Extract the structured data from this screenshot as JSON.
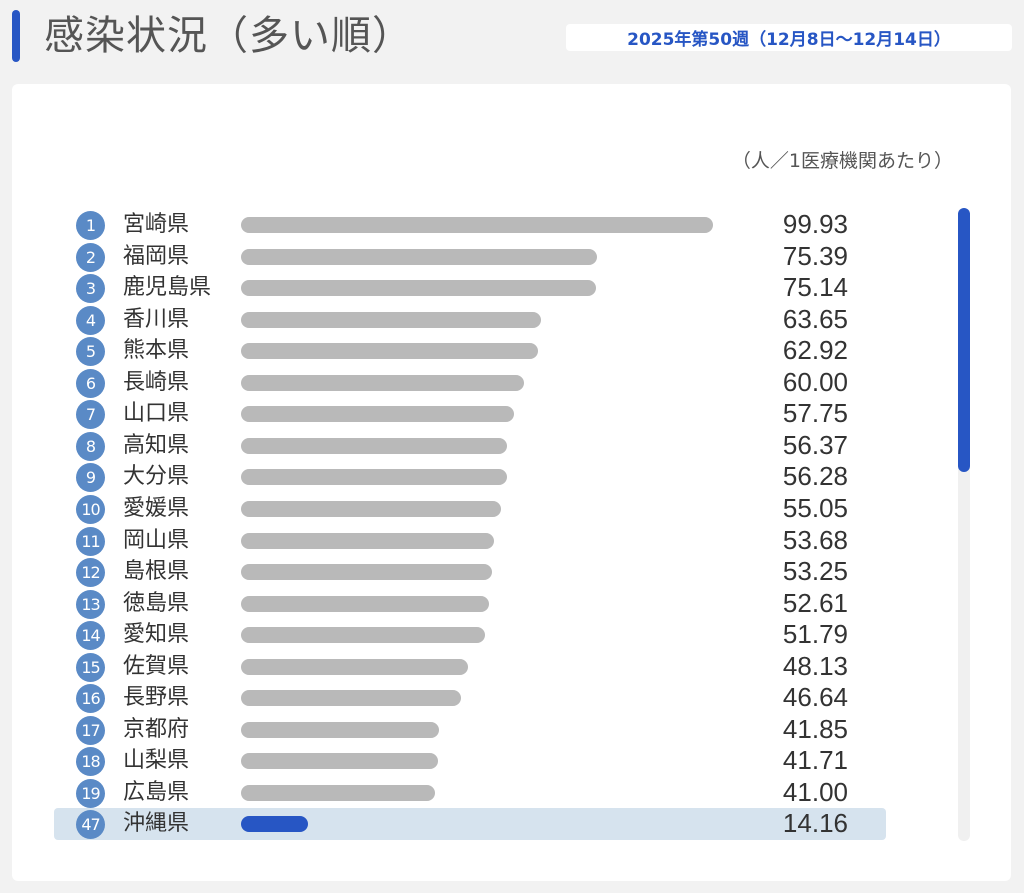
{
  "header": {
    "title": "感染状況（多い順）",
    "week": "2025年第50週（12月8日〜12月14日）"
  },
  "panel": {
    "unit_label": "（人／1医療機関あたり）"
  },
  "colors": {
    "accent": "#2756c4",
    "bar_default": "#b9b9b9",
    "highlight_bg": "#d6e3ee",
    "rank_circle": "#5a8ac6"
  },
  "chart_data": {
    "type": "bar",
    "orientation": "horizontal",
    "xlim": [
      0,
      100
    ],
    "highlight_rank": "47",
    "rows": [
      {
        "rank": "1",
        "prefecture": "宮崎県",
        "value": 99.93,
        "label": "99.93"
      },
      {
        "rank": "2",
        "prefecture": "福岡県",
        "value": 75.39,
        "label": "75.39"
      },
      {
        "rank": "3",
        "prefecture": "鹿児島県",
        "value": 75.14,
        "label": "75.14"
      },
      {
        "rank": "4",
        "prefecture": "香川県",
        "value": 63.65,
        "label": "63.65"
      },
      {
        "rank": "5",
        "prefecture": "熊本県",
        "value": 62.92,
        "label": "62.92"
      },
      {
        "rank": "6",
        "prefecture": "長崎県",
        "value": 60.0,
        "label": "60.00"
      },
      {
        "rank": "7",
        "prefecture": "山口県",
        "value": 57.75,
        "label": "57.75"
      },
      {
        "rank": "8",
        "prefecture": "高知県",
        "value": 56.37,
        "label": "56.37"
      },
      {
        "rank": "9",
        "prefecture": "大分県",
        "value": 56.28,
        "label": "56.28"
      },
      {
        "rank": "10",
        "prefecture": "愛媛県",
        "value": 55.05,
        "label": "55.05"
      },
      {
        "rank": "11",
        "prefecture": "岡山県",
        "value": 53.68,
        "label": "53.68"
      },
      {
        "rank": "12",
        "prefecture": "島根県",
        "value": 53.25,
        "label": "53.25"
      },
      {
        "rank": "13",
        "prefecture": "徳島県",
        "value": 52.61,
        "label": "52.61"
      },
      {
        "rank": "14",
        "prefecture": "愛知県",
        "value": 51.79,
        "label": "51.79"
      },
      {
        "rank": "15",
        "prefecture": "佐賀県",
        "value": 48.13,
        "label": "48.13"
      },
      {
        "rank": "16",
        "prefecture": "長野県",
        "value": 46.64,
        "label": "46.64"
      },
      {
        "rank": "17",
        "prefecture": "京都府",
        "value": 41.85,
        "label": "41.85"
      },
      {
        "rank": "18",
        "prefecture": "山梨県",
        "value": 41.71,
        "label": "41.71"
      },
      {
        "rank": "19",
        "prefecture": "広島県",
        "value": 41.0,
        "label": "41.00"
      },
      {
        "rank": "47",
        "prefecture": "沖縄県",
        "value": 14.16,
        "label": "14.16"
      }
    ]
  }
}
